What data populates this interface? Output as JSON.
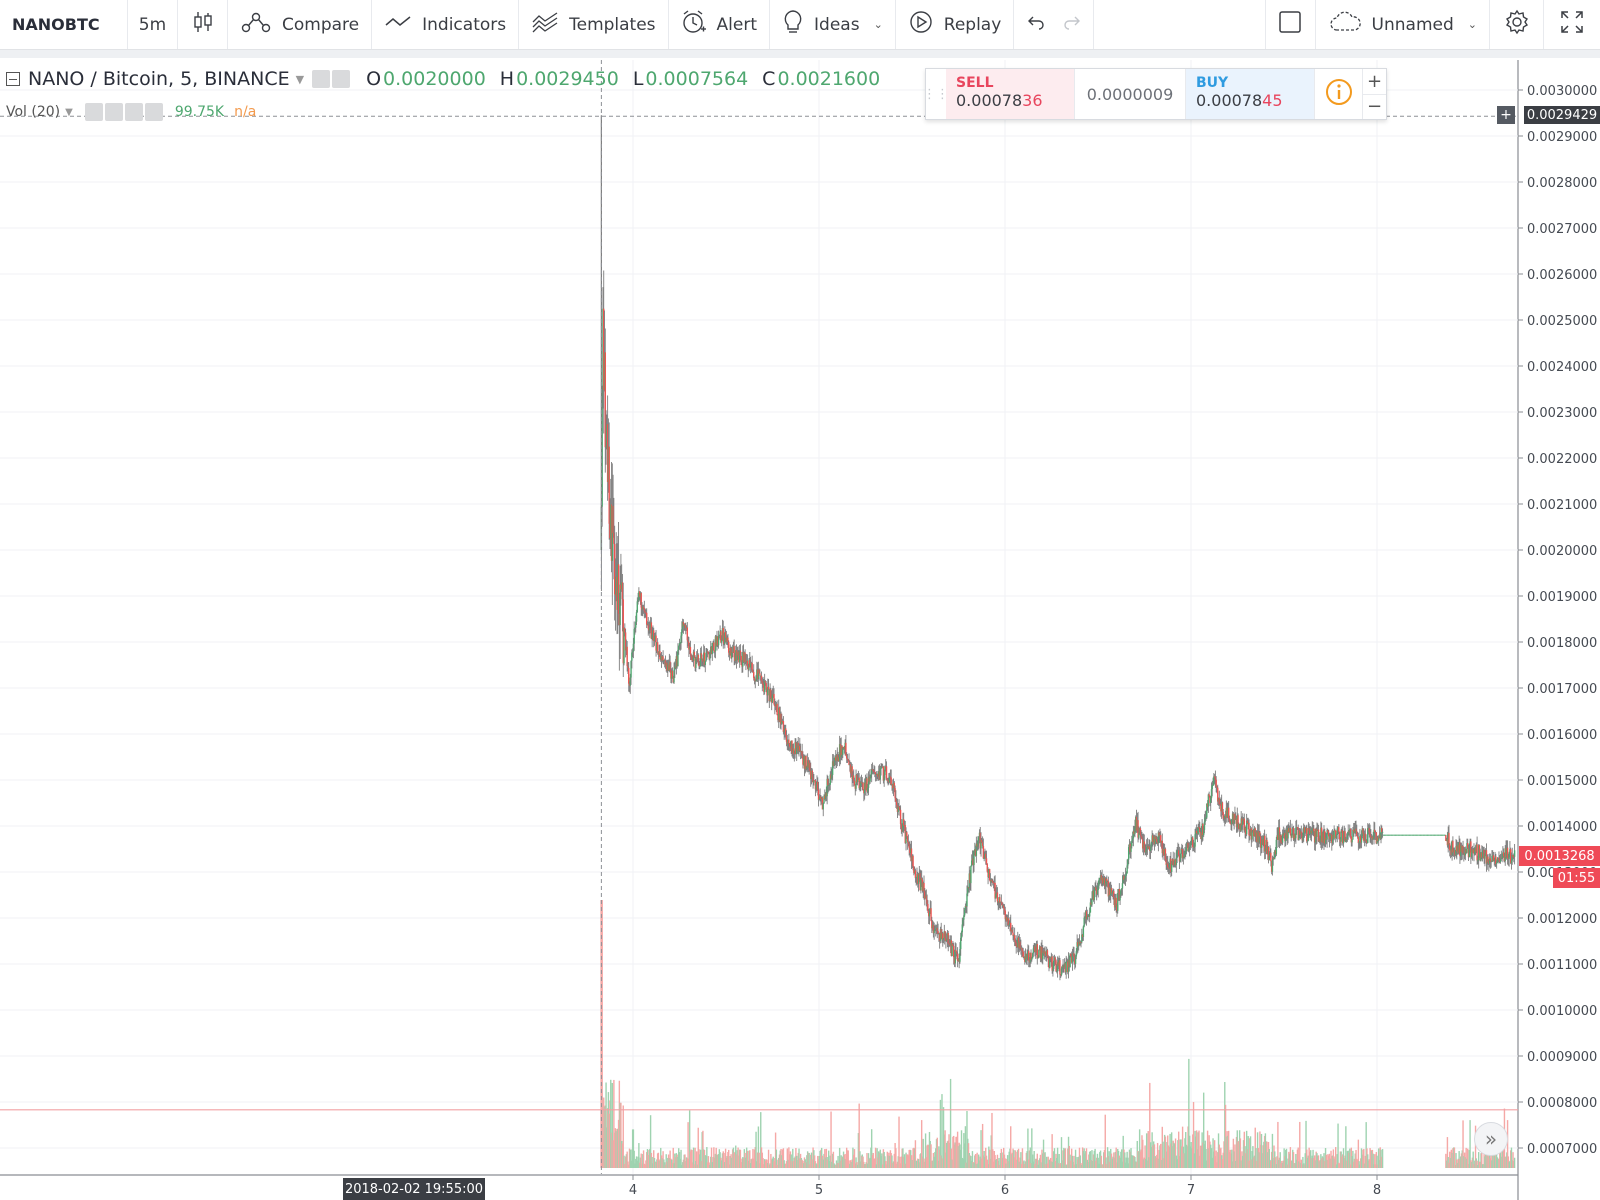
{
  "toolbar": {
    "symbol": "NANOBTC",
    "interval": "5m",
    "compare_label": "Compare",
    "indicators_label": "Indicators",
    "templates_label": "Templates",
    "alert_label": "Alert",
    "ideas_label": "Ideas",
    "replay_label": "Replay",
    "layout_name": "Unnamed"
  },
  "legend": {
    "title": "NANO / Bitcoin, 5, BINANCE",
    "o_key": "O",
    "o_val": "0.0020000",
    "h_key": "H",
    "h_val": "0.0029450",
    "l_key": "L",
    "l_val": "0.0007564",
    "c_key": "C",
    "c_val": "0.0021600",
    "vol_label": "Vol (20)",
    "vol_value": "99.75K",
    "vol_ma": "n/a"
  },
  "trade_panel": {
    "sell_label": "SELL",
    "sell_price_main": "0.00078",
    "sell_price_hi": "36",
    "spread": "0.0000009",
    "buy_label": "BUY",
    "buy_price_main": "0.00078",
    "buy_price_hi": "45"
  },
  "price_axis": {
    "crosshair_price": "0.0029429",
    "last_price": "0.0013268",
    "countdown": "01:55"
  },
  "time_axis": {
    "crosshair_date": "2018-02-02 19:55:00"
  },
  "colors": {
    "up": "#4ea76f",
    "down": "#ef5350",
    "wick": "#7d7d7d",
    "grid": "#f0f2f5",
    "last_price": "#ef4a57"
  },
  "chart_data": {
    "type": "candlestick",
    "symbol": "NANO / Bitcoin",
    "timeframe": "5",
    "exchange": "BINANCE",
    "y_ticks": [
      "0.0030000",
      "0.0029000",
      "0.0028000",
      "0.0027000",
      "0.0026000",
      "0.0025000",
      "0.0024000",
      "0.0023000",
      "0.0022000",
      "0.0021000",
      "0.0020000",
      "0.0019000",
      "0.0018000",
      "0.0017000",
      "0.0016000",
      "0.0015000",
      "0.0014000",
      "0.0013000",
      "0.0012000",
      "0.0011000",
      "0.0010000",
      "0.0009000",
      "0.0008000",
      "0.0007000"
    ],
    "ylim": [
      0.00064,
      0.0031
    ],
    "x_ticks": [
      {
        "label": "4",
        "day": 3
      },
      {
        "label": "5",
        "day": 4
      },
      {
        "label": "6",
        "day": 5
      },
      {
        "label": "7",
        "day": 6
      },
      {
        "label": "8",
        "day": 7
      }
    ],
    "x_range_days": [
      0.0,
      7.74
    ],
    "listing_day": 2.83,
    "gap_days": [
      7.0,
      7.37
    ],
    "price_path": [
      [
        2.83,
        0.002
      ],
      [
        2.838,
        0.0025
      ],
      [
        2.85,
        0.00228
      ],
      [
        2.87,
        0.00212
      ],
      [
        2.9,
        0.00196
      ],
      [
        2.93,
        0.00188
      ],
      [
        2.96,
        0.0018
      ],
      [
        2.98,
        0.0017
      ],
      [
        3.0,
        0.0018
      ],
      [
        3.03,
        0.00192
      ],
      [
        3.06,
        0.00186
      ],
      [
        3.12,
        0.0018
      ],
      [
        3.17,
        0.00176
      ],
      [
        3.22,
        0.00172
      ],
      [
        3.27,
        0.00184
      ],
      [
        3.33,
        0.00176
      ],
      [
        3.4,
        0.00177
      ],
      [
        3.48,
        0.00182
      ],
      [
        3.53,
        0.00178
      ],
      [
        3.6,
        0.00176
      ],
      [
        3.68,
        0.00172
      ],
      [
        3.77,
        0.00166
      ],
      [
        3.83,
        0.00158
      ],
      [
        3.9,
        0.00156
      ],
      [
        3.97,
        0.0015
      ],
      [
        4.02,
        0.00145
      ],
      [
        4.08,
        0.00154
      ],
      [
        4.14,
        0.00158
      ],
      [
        4.18,
        0.0015
      ],
      [
        4.24,
        0.00148
      ],
      [
        4.3,
        0.00152
      ],
      [
        4.38,
        0.00151
      ],
      [
        4.45,
        0.0014
      ],
      [
        4.52,
        0.0013
      ],
      [
        4.57,
        0.00125
      ],
      [
        4.62,
        0.00117
      ],
      [
        4.68,
        0.00116
      ],
      [
        4.75,
        0.0011
      ],
      [
        4.8,
        0.00127
      ],
      [
        4.86,
        0.00138
      ],
      [
        4.92,
        0.00128
      ],
      [
        4.98,
        0.00123
      ],
      [
        5.05,
        0.00116
      ],
      [
        5.12,
        0.00111
      ],
      [
        5.18,
        0.00113
      ],
      [
        5.26,
        0.0011
      ],
      [
        5.32,
        0.00109
      ],
      [
        5.38,
        0.00112
      ],
      [
        5.45,
        0.00122
      ],
      [
        5.52,
        0.00129
      ],
      [
        5.6,
        0.00123
      ],
      [
        5.65,
        0.00131
      ],
      [
        5.7,
        0.00141
      ],
      [
        5.75,
        0.00135
      ],
      [
        5.82,
        0.00138
      ],
      [
        5.88,
        0.00131
      ],
      [
        5.94,
        0.00134
      ],
      [
        6.0,
        0.00136
      ],
      [
        6.06,
        0.00139
      ],
      [
        6.12,
        0.0015
      ],
      [
        6.17,
        0.00143
      ],
      [
        6.24,
        0.00141
      ],
      [
        6.32,
        0.00139
      ],
      [
        6.4,
        0.00136
      ],
      [
        6.44,
        0.00131
      ],
      [
        6.47,
        0.00138
      ],
      [
        7.37,
        0.00138
      ],
      [
        7.4,
        0.00135
      ],
      [
        7.5,
        0.00135
      ],
      [
        7.6,
        0.00133
      ],
      [
        7.68,
        0.00134
      ],
      [
        7.74,
        0.00133
      ]
    ],
    "volume_level_line": 0.000783
  }
}
